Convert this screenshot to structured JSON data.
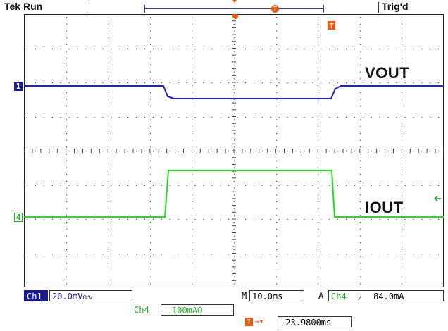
{
  "header": {
    "status": "Tek Run",
    "trigger_state": "Trig'd",
    "trigger_marker_glyph": "T"
  },
  "channels": {
    "ch1_marker": "1",
    "ch4_marker": "4"
  },
  "waveforms": {
    "vout_label": "VOUT",
    "iout_label": "IOUT",
    "vout_color": "#2020c8",
    "iout_color": "#22dd22"
  },
  "readouts": {
    "ch1_name": "Ch1",
    "ch1_scale": "20.0mV",
    "ch1_coupling_glyph": "∩∿",
    "ch4_name": "Ch4",
    "ch4_scale": "100mA",
    "ch4_impedance": "Ω",
    "timebase_prefix": "M",
    "timebase": "10.0ms",
    "trigger_mode": "A",
    "trigger_source": "Ch4",
    "trigger_slope_glyph": "⸝",
    "trigger_level": "84.0mA",
    "trigger_offset": "-23.9800ms"
  }
}
